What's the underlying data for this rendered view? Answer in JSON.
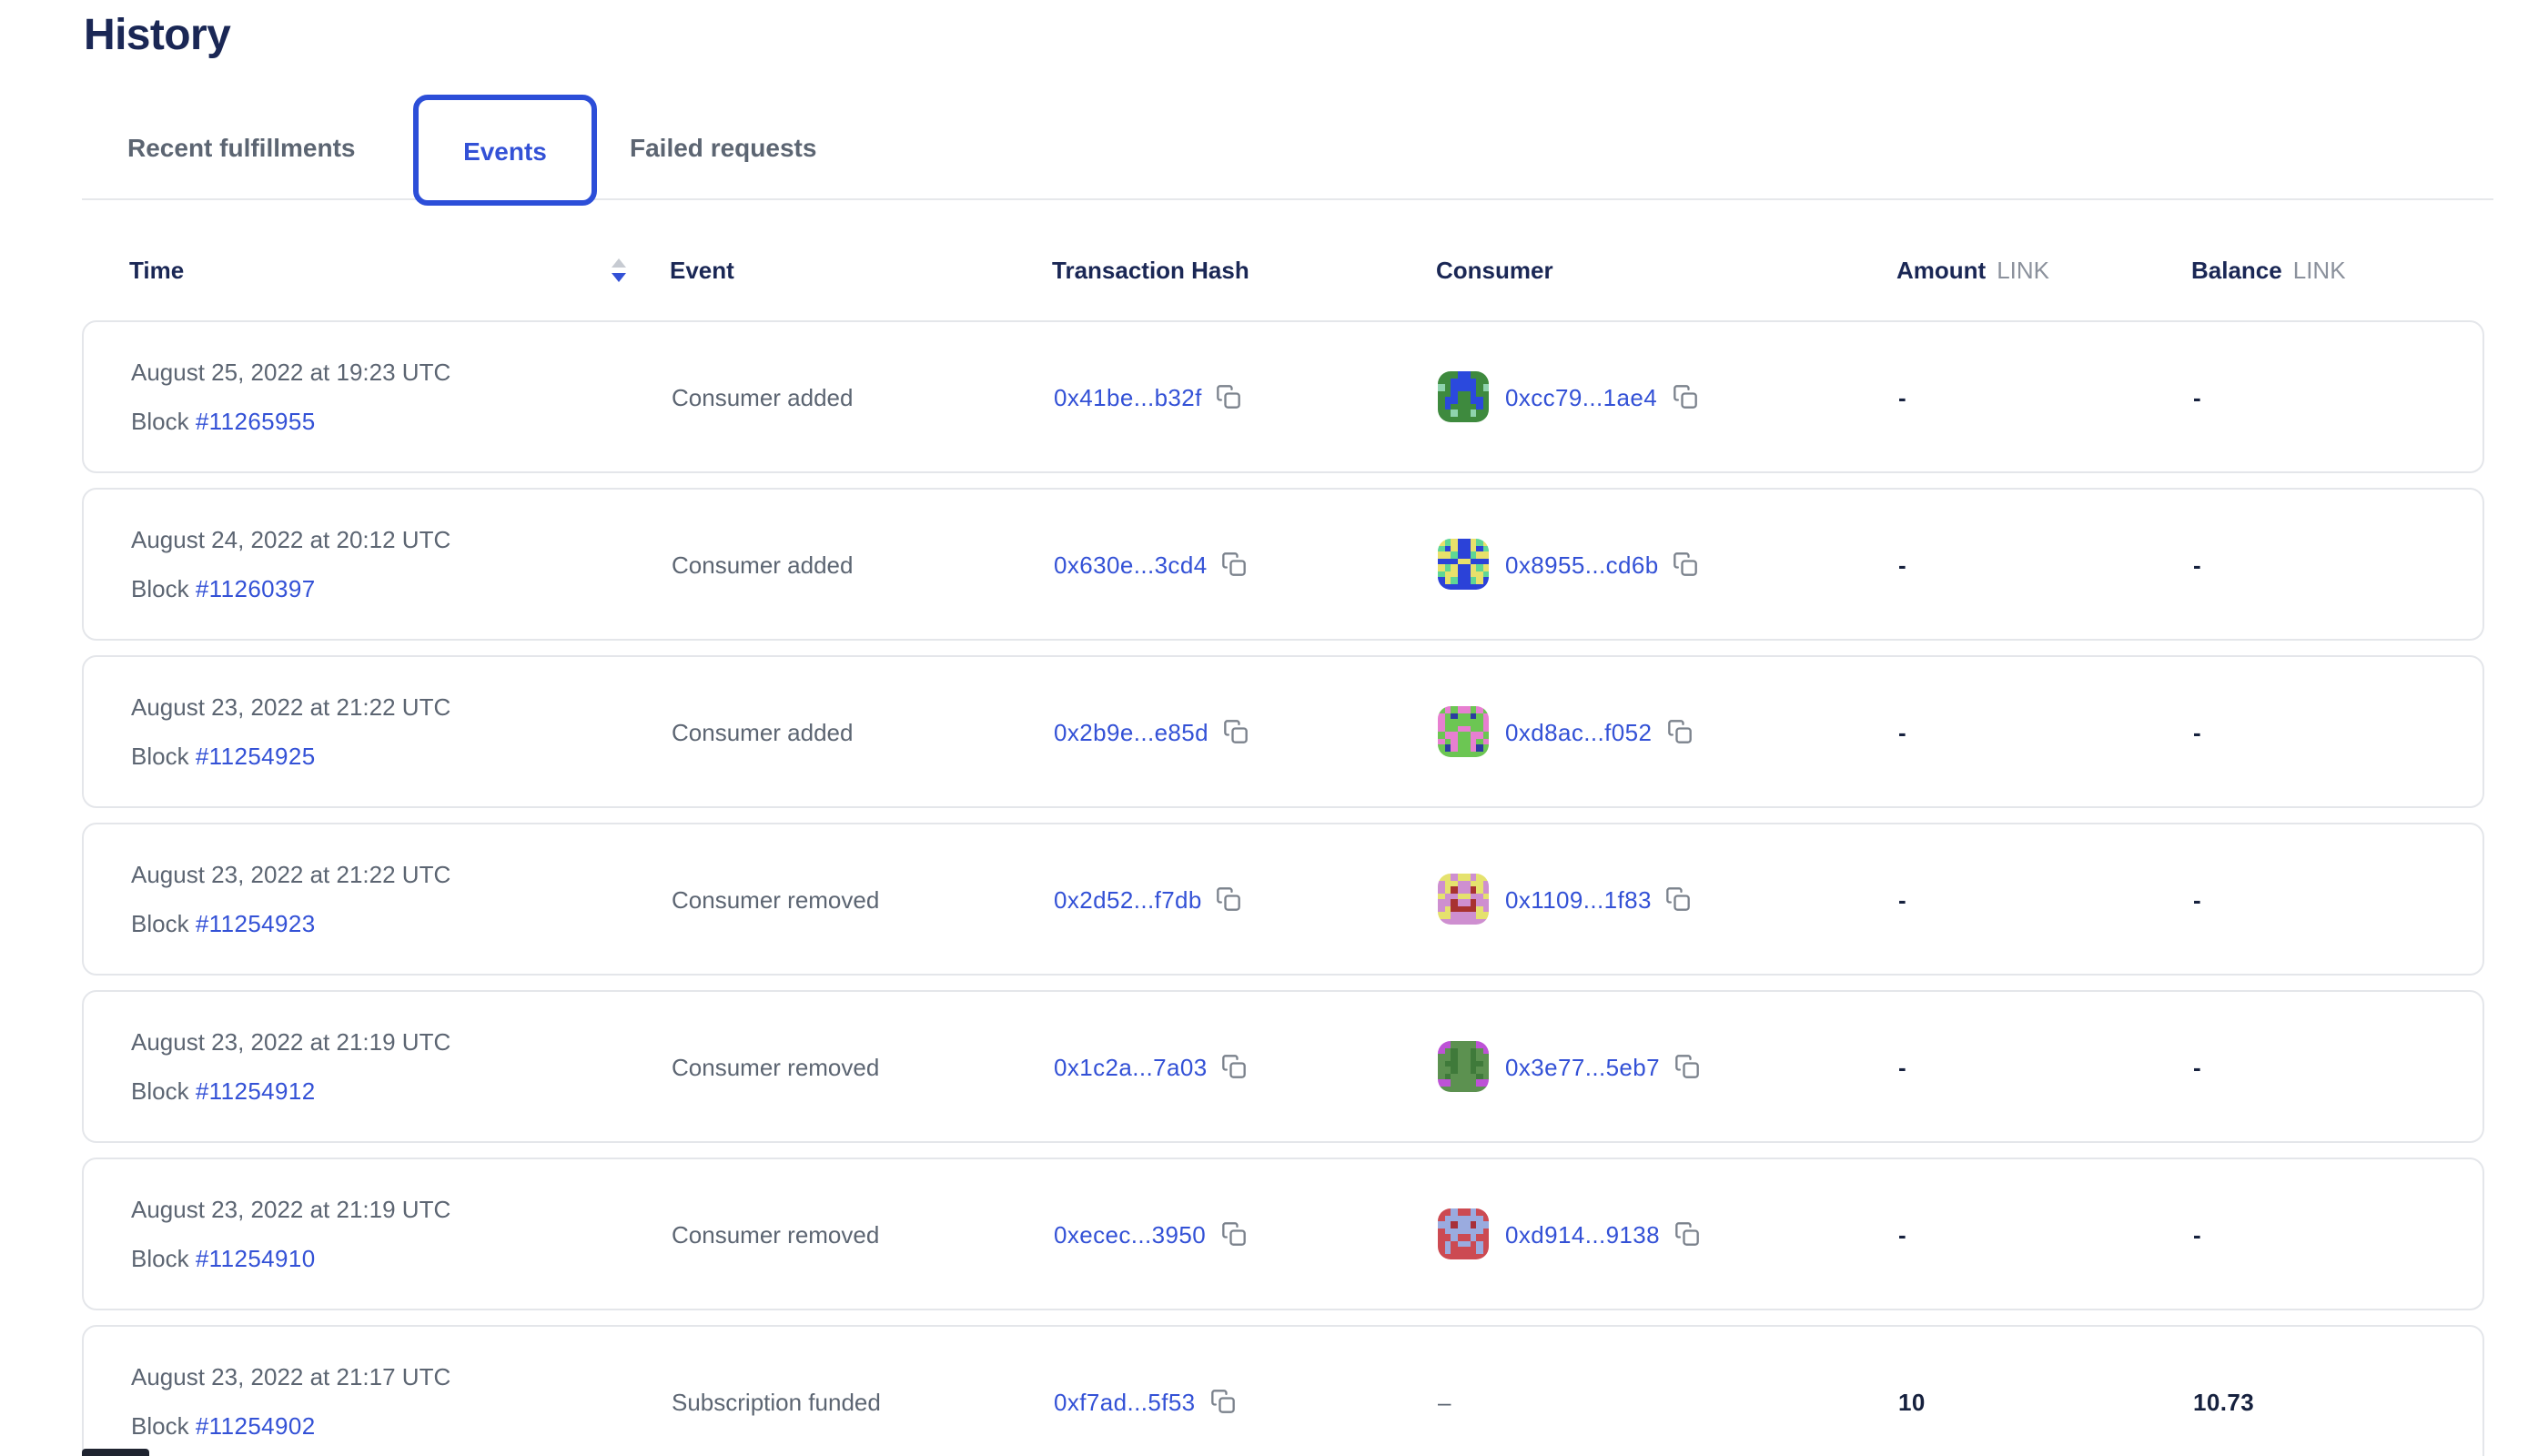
{
  "page": {
    "title": "History"
  },
  "tabs": {
    "items": [
      {
        "label": "Recent fulfillments",
        "active": false
      },
      {
        "label": "Events",
        "active": true
      },
      {
        "label": "Failed requests",
        "active": false
      }
    ]
  },
  "table": {
    "columns": {
      "time": "Time",
      "event": "Event",
      "tx": "Transaction Hash",
      "consumer": "Consumer",
      "amount": "Amount",
      "balance": "Balance",
      "unit": "LINK"
    },
    "sort": {
      "column": "time",
      "direction": "descending"
    },
    "block_label": "Block",
    "rows": [
      {
        "date": "August 25, 2022 at 19:23 UTC",
        "block": "#11265955",
        "event": "Consumer added",
        "tx": "0x41be...b32f",
        "consumer": "0xcc79...1ae4",
        "amount": "-",
        "balance": "-",
        "avatar": {
          "palette": {
            "b": "#3e8a3e",
            "c": "#2b49dd",
            "s": "#8fd3ae"
          },
          "grid": [
            "bbbccbbb",
            "bbccccbb",
            "sbccccbs",
            "bbcbbcbb",
            "bccbbccb",
            "bcbbbbcb",
            "bbsbbsbb",
            "bbbbbbbb"
          ]
        }
      },
      {
        "date": "August 24, 2022 at 20:12 UTC",
        "block": "#11260397",
        "event": "Consumer added",
        "tx": "0x630e...3cd4",
        "consumer": "0x8955...cd6b",
        "amount": "-",
        "balance": "-",
        "avatar": {
          "palette": {
            "b": "#2b42d8",
            "c": "#e8e06b",
            "s": "#5fd695"
          },
          "grid": [
            "cscbbcsc",
            "sbcbbcbs",
            "ccsbbscc",
            "bbbccbbb",
            "cscbbcsc",
            "sccbbccs",
            "bcsbbscb",
            "bbbbbbbb"
          ]
        }
      },
      {
        "date": "August 23, 2022 at 21:22 UTC",
        "block": "#11254925",
        "event": "Consumer added",
        "tx": "0x2b9e...e85d",
        "consumer": "0xd8ac...f052",
        "amount": "-",
        "balance": "-",
        "avatar": {
          "palette": {
            "b": "#6cc653",
            "c": "#e77fd0",
            "s": "#2b3ba0"
          },
          "grid": [
            "bcbccbcb",
            "cbsbbsbc",
            "cbbbbbbc",
            "cbbccbbc",
            "bccbbccb",
            "cbcbbcbc",
            "bscbbcsb",
            "bbbbbbbb"
          ]
        }
      },
      {
        "date": "August 23, 2022 at 21:22 UTC",
        "block": "#11254923",
        "event": "Consumer removed",
        "tx": "0x2d52...f7db",
        "consumer": "0x1109...1f83",
        "amount": "-",
        "balance": "-",
        "avatar": {
          "palette": {
            "b": "#ce8fd0",
            "c": "#e5e26e",
            "s": "#a83230"
          },
          "grid": [
            "ccbccbcc",
            "bccbbccb",
            "bcsbbscb",
            "cbbccbbc",
            "bbsbbsbb",
            "bcsssscb",
            "ccbbbbcc",
            "bbbbbbbb"
          ]
        }
      },
      {
        "date": "August 23, 2022 at 21:19 UTC",
        "block": "#11254912",
        "event": "Consumer removed",
        "tx": "0x1c2a...7a03",
        "consumer": "0x3e77...5eb7",
        "amount": "-",
        "balance": "-",
        "avatar": {
          "palette": {
            "b": "#5c9150",
            "c": "#bd52d6",
            "s": "#3f7a3a"
          },
          "grid": [
            "ccbbbbcc",
            "cbsbbsbc",
            "bbsbbsbb",
            "bssbbssb",
            "bbsbbsbb",
            "bsbbbbsb",
            "ccbbbbcc",
            "bbbbbbbb"
          ]
        }
      },
      {
        "date": "August 23, 2022 at 21:19 UTC",
        "block": "#11254910",
        "event": "Consumer removed",
        "tx": "0xecec...3950",
        "consumer": "0xd914...9138",
        "amount": "-",
        "balance": "-",
        "avatar": {
          "palette": {
            "b": "#cc4a52",
            "c": "#9aabdf",
            "s": "#a83038"
          },
          "grid": [
            "bbcbbcbb",
            "bccccccb",
            "ccsccscc",
            "bccccccb",
            "bbcbbcbb",
            "bcbccbcb",
            "bcbbbbcb",
            "bbbbbbbb"
          ]
        }
      },
      {
        "date": "August 23, 2022 at 21:17 UTC",
        "block": "#11254902",
        "event": "Subscription funded",
        "tx": "0xf7ad...5f53",
        "consumer": null,
        "consumer_dash": "–",
        "amount": "10",
        "balance": "10.73",
        "avatar": null
      }
    ]
  },
  "colors": {
    "accent_blue": "#3351d6",
    "navy": "#1a2755",
    "text_gray": "#5c6572",
    "link_gray": "#8b919c",
    "card_border": "#e4e6ea",
    "active_tab_border": "#2c4ed8",
    "icon_gray": "#7b828c",
    "sort_inactive": "#c7cbd2"
  }
}
